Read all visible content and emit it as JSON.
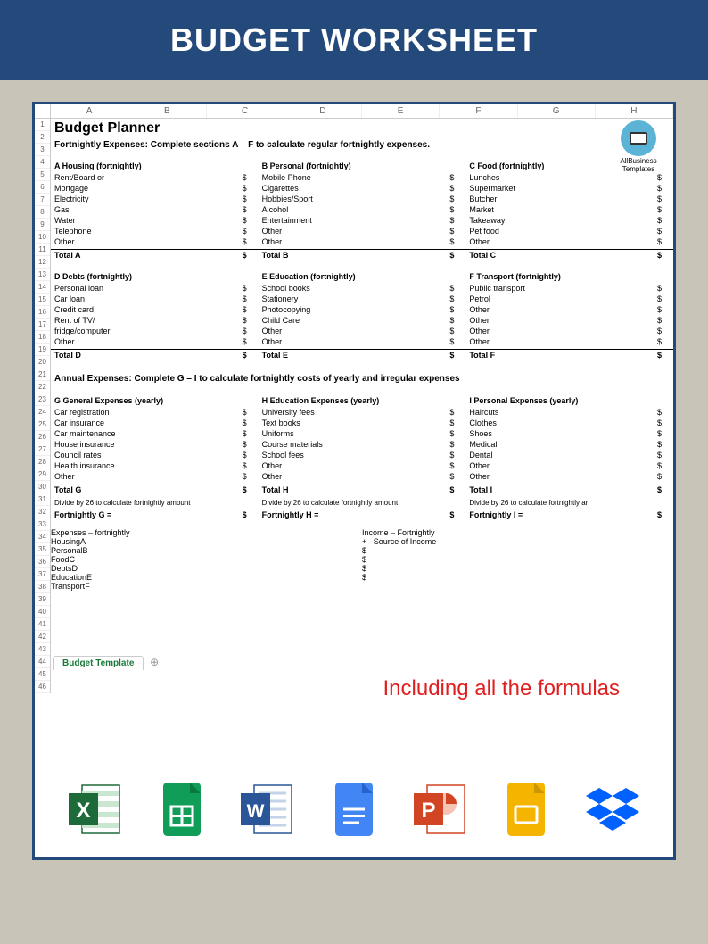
{
  "header_title": "BUDGET WORKSHEET",
  "sheet": {
    "title": "Budget Planner",
    "subtitle": "Fortnightly Expenses: Complete sections A – F to calculate regular fortnightly expenses.",
    "columns": [
      "A",
      "B",
      "C",
      "D",
      "E",
      "F",
      "G",
      "H"
    ],
    "logo_text": "AllBusiness\nTemplates",
    "sections_top": [
      {
        "head": "A Housing (fortnightly)",
        "items": [
          "Rent/Board or",
          "Mortgage",
          "Electricity",
          "Gas",
          "Water",
          "Telephone",
          "Other"
        ],
        "total": "Total A"
      },
      {
        "head": "B Personal (fortnightly)",
        "items": [
          "Mobile Phone",
          "Cigarettes",
          "Hobbies/Sport",
          "Alcohol",
          "Entertainment",
          "Other",
          "Other"
        ],
        "total": "Total B"
      },
      {
        "head": "C Food (fortnightly)",
        "items": [
          "Lunches",
          "Supermarket",
          "Butcher",
          "Market",
          "Takeaway",
          "Pet food",
          "Other"
        ],
        "total": "Total C"
      }
    ],
    "sections_mid": [
      {
        "head": "D Debts (fortnightly)",
        "items": [
          "Personal loan",
          "Car loan",
          "Credit card",
          "Rent of TV/",
          "fridge/computer",
          "Other"
        ],
        "total": "Total D"
      },
      {
        "head": "E Education (fortnightly)",
        "items": [
          "School books",
          "Stationery",
          "Photocopying",
          "Child Care",
          "Other",
          "Other"
        ],
        "total": "Total E"
      },
      {
        "head": "F Transport (fortnightly)",
        "items": [
          "Public transport",
          "Petrol",
          "Other",
          "Other",
          "Other",
          "Other"
        ],
        "total": "Total F"
      }
    ],
    "annual_title": "Annual Expenses: Complete G – I to calculate fortnightly costs of yearly and irregular expenses",
    "sections_annual": [
      {
        "head": "G General Expenses (yearly)",
        "items": [
          "Car registration",
          "Car insurance",
          "Car maintenance",
          "House insurance",
          "Council rates",
          "Health insurance",
          "Other"
        ],
        "total": "Total G",
        "divide": "Divide by 26 to calculate fortnightly amount",
        "fort": "Fortnightly G ="
      },
      {
        "head": "H Education Expenses (yearly)",
        "items": [
          "University fees",
          "Text books",
          "Uniforms",
          "Course materials",
          "School fees",
          "Other",
          "Other"
        ],
        "total": "Total H",
        "divide": "Divide by 26 to calculate fortnightly amount",
        "fort": "Fortnightly H ="
      },
      {
        "head": "I Personal Expenses (yearly)",
        "items": [
          "Haircuts",
          "Clothes",
          "Shoes",
          "Medical",
          "Dental",
          "Other",
          "Other"
        ],
        "total": "Total I",
        "divide": "Divide by 26 to calculate fortnightly ar",
        "fort": "Fortnightly I ="
      }
    ],
    "summary": {
      "exp_head": "Expenses – fortnightly",
      "exp_items": [
        [
          "Housing",
          "A"
        ],
        [
          "Personal",
          "B"
        ],
        [
          "Food",
          "C"
        ],
        [
          "Debts",
          "D"
        ],
        [
          "Education",
          "E"
        ],
        [
          "Transport",
          "F"
        ]
      ],
      "inc_head": "Income – Fortnightly",
      "inc_sub": "Source of Income"
    },
    "tab_label": "Budget Template",
    "callout": "Including all the formulas"
  },
  "icons": {
    "excel_color": "#1e6b3a",
    "sheets_color": "#0f9d58",
    "word_color": "#2a5699",
    "docs_color": "#4285f4",
    "ppt_color": "#d14424",
    "slides_color": "#f4b400",
    "dropbox_color": "#0061ff"
  }
}
